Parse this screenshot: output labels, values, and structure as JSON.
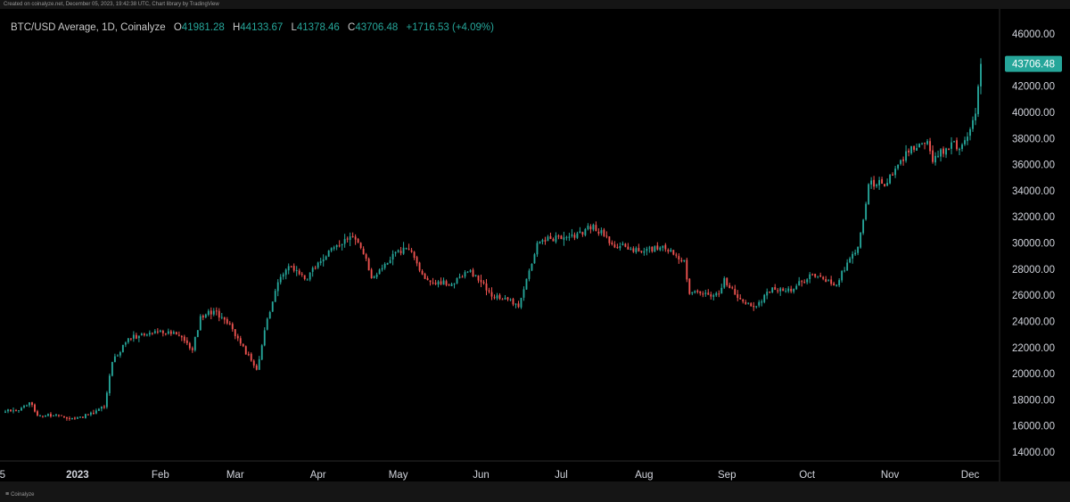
{
  "credit": "Created on coinalyze.net, December 05, 2023, 19:42:38 UTC, Chart library by TradingView",
  "header": {
    "symbol": "BTC/USD Average, 1D, Coinalyze",
    "o_label": "O",
    "o_value": "41981.28",
    "h_label": "H",
    "h_value": "44133.67",
    "l_label": "L",
    "l_value": "41378.46",
    "c_label": "C",
    "c_value": "43706.48",
    "change": "+1716.53 (+4.09%)"
  },
  "brand": {
    "name": "Coinalyze",
    "icon": "coinalyze-logo-icon"
  },
  "colors": {
    "up": "#26a69a",
    "down": "#ef5350",
    "background": "#000000",
    "text": "#d1d4dc",
    "price_tag": "#26a69a"
  },
  "chart_data": {
    "type": "candlestick",
    "title": "BTC/USD Average, 1D, Coinalyze",
    "x": {
      "start_date": "2022-12-05",
      "end_date": "2023-12-05",
      "tick_labels": [
        {
          "label": "5",
          "date": "2022-12-05"
        },
        {
          "label": "2023",
          "date": "2023-01-01",
          "bold": true
        },
        {
          "label": "Feb",
          "date": "2023-02-01"
        },
        {
          "label": "Mar",
          "date": "2023-03-01"
        },
        {
          "label": "Apr",
          "date": "2023-04-01"
        },
        {
          "label": "May",
          "date": "2023-05-01"
        },
        {
          "label": "Jun",
          "date": "2023-06-01"
        },
        {
          "label": "Jul",
          "date": "2023-07-01"
        },
        {
          "label": "Aug",
          "date": "2023-08-01"
        },
        {
          "label": "Sep",
          "date": "2023-09-01"
        },
        {
          "label": "Oct",
          "date": "2023-10-01"
        },
        {
          "label": "Nov",
          "date": "2023-11-01"
        },
        {
          "label": "Dec",
          "date": "2023-12-01"
        }
      ]
    },
    "y": {
      "range": [
        14000,
        46000
      ],
      "tick_labels": [
        "14000.00",
        "16000.00",
        "18000.00",
        "20000.00",
        "22000.00",
        "24000.00",
        "26000.00",
        "28000.00",
        "30000.00",
        "32000.00",
        "34000.00",
        "36000.00",
        "38000.00",
        "40000.00",
        "42000.00",
        "44000.00",
        "46000.00"
      ]
    },
    "last_price": "43706.48",
    "last_price_value": 43706.48,
    "grid": false,
    "close_keypoints": [
      [
        "2022-12-05",
        17100
      ],
      [
        "2022-12-10",
        17200
      ],
      [
        "2022-12-14",
        17800
      ],
      [
        "2022-12-17",
        16800
      ],
      [
        "2022-12-25",
        16850
      ],
      [
        "2022-12-31",
        16550
      ],
      [
        "2023-01-07",
        16950
      ],
      [
        "2023-01-11",
        17450
      ],
      [
        "2023-01-14",
        20900
      ],
      [
        "2023-01-20",
        22700
      ],
      [
        "2023-01-24",
        22900
      ],
      [
        "2023-02-01",
        23300
      ],
      [
        "2023-02-08",
        22900
      ],
      [
        "2023-02-13",
        21800
      ],
      [
        "2023-02-16",
        24400
      ],
      [
        "2023-02-21",
        24800
      ],
      [
        "2023-02-28",
        23400
      ],
      [
        "2023-03-03",
        22300
      ],
      [
        "2023-03-09",
        20300
      ],
      [
        "2023-03-13",
        24200
      ],
      [
        "2023-03-18",
        27400
      ],
      [
        "2023-03-22",
        28200
      ],
      [
        "2023-03-28",
        27200
      ],
      [
        "2023-04-01",
        28500
      ],
      [
        "2023-04-11",
        30300
      ],
      [
        "2023-04-14",
        30500
      ],
      [
        "2023-04-19",
        28800
      ],
      [
        "2023-04-21",
        27300
      ],
      [
        "2023-04-26",
        28400
      ],
      [
        "2023-04-30",
        29300
      ],
      [
        "2023-05-05",
        29500
      ],
      [
        "2023-05-10",
        27600
      ],
      [
        "2023-05-14",
        26900
      ],
      [
        "2023-05-22",
        26900
      ],
      [
        "2023-05-28",
        27900
      ],
      [
        "2023-06-01",
        27000
      ],
      [
        "2023-06-06",
        25800
      ],
      [
        "2023-06-10",
        25800
      ],
      [
        "2023-06-15",
        25100
      ],
      [
        "2023-06-20",
        28400
      ],
      [
        "2023-06-22",
        30000
      ],
      [
        "2023-06-30",
        30500
      ],
      [
        "2023-07-06",
        30400
      ],
      [
        "2023-07-13",
        31400
      ],
      [
        "2023-07-20",
        29900
      ],
      [
        "2023-07-31",
        29300
      ],
      [
        "2023-08-08",
        29800
      ],
      [
        "2023-08-16",
        28700
      ],
      [
        "2023-08-18",
        26100
      ],
      [
        "2023-08-29",
        26100
      ],
      [
        "2023-08-31",
        27300
      ],
      [
        "2023-09-05",
        25800
      ],
      [
        "2023-09-11",
        25100
      ],
      [
        "2023-09-18",
        26600
      ],
      [
        "2023-09-25",
        26300
      ],
      [
        "2023-10-02",
        27600
      ],
      [
        "2023-10-12",
        26800
      ],
      [
        "2023-10-16",
        28500
      ],
      [
        "2023-10-20",
        29700
      ],
      [
        "2023-10-23",
        33000
      ],
      [
        "2023-10-24",
        34500
      ],
      [
        "2023-10-31",
        34600
      ],
      [
        "2023-11-09",
        37400
      ],
      [
        "2023-11-15",
        37800
      ],
      [
        "2023-11-17",
        36200
      ],
      [
        "2023-11-24",
        37700
      ],
      [
        "2023-11-27",
        37200
      ],
      [
        "2023-12-01",
        38700
      ],
      [
        "2023-12-02",
        39400
      ],
      [
        "2023-12-03",
        39900
      ],
      [
        "2023-12-04",
        41981.28
      ],
      [
        "2023-12-05",
        43706.48
      ]
    ],
    "last_candle": {
      "open": 41981.28,
      "high": 44133.67,
      "low": 41378.46,
      "close": 43706.48
    }
  }
}
